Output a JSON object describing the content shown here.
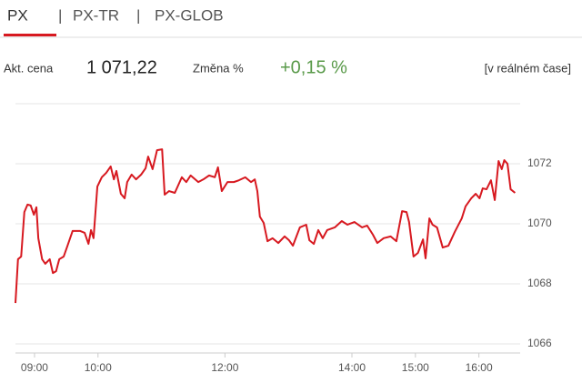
{
  "tabs": [
    "PX",
    "PX-TR",
    "PX-GLOB"
  ],
  "info": {
    "price_label": "Akt. cena",
    "price": "1 071,22",
    "change_label": "Změna %",
    "change": "+0,15 %",
    "realtime": "[v reálném čase]"
  },
  "chart_data": {
    "type": "line",
    "color": "#d71920",
    "grid": true,
    "xlim": [
      8.7,
      16.65
    ],
    "ylim": [
      1066,
      1074
    ],
    "yticks": [
      1066,
      1068,
      1070,
      1072
    ],
    "xticks": [
      {
        "value": 9,
        "label": "09:00"
      },
      {
        "value": 10,
        "label": "10:00"
      },
      {
        "value": 12,
        "label": "12:00"
      },
      {
        "value": 14,
        "label": "14:00"
      },
      {
        "value": 15,
        "label": "15:00"
      },
      {
        "value": 16,
        "label": "16:00"
      }
    ],
    "x": [
      8.7,
      8.74,
      8.79,
      8.84,
      8.89,
      8.94,
      8.99,
      9.03,
      9.06,
      9.12,
      9.17,
      9.24,
      9.29,
      9.34,
      9.39,
      9.46,
      9.52,
      9.6,
      9.72,
      9.79,
      9.85,
      9.89,
      9.93,
      9.99,
      10.06,
      10.13,
      10.2,
      10.25,
      10.29,
      10.36,
      10.42,
      10.46,
      10.53,
      10.6,
      10.68,
      10.75,
      10.79,
      10.86,
      10.93,
      11.01,
      11.05,
      11.12,
      11.21,
      11.32,
      11.39,
      11.46,
      11.58,
      11.66,
      11.75,
      11.84,
      11.89,
      11.95,
      12.04,
      12.14,
      12.22,
      12.32,
      12.41,
      12.47,
      12.51,
      12.55,
      12.61,
      12.67,
      12.75,
      12.84,
      12.94,
      13.01,
      13.07,
      13.18,
      13.28,
      13.33,
      13.4,
      13.47,
      13.54,
      13.61,
      13.73,
      13.84,
      13.93,
      14.04,
      14.16,
      14.24,
      14.33,
      14.4,
      14.5,
      14.61,
      14.7,
      14.79,
      14.86,
      14.9,
      14.97,
      15.04,
      15.12,
      15.16,
      15.22,
      15.27,
      15.34,
      15.43,
      15.52,
      15.62,
      15.73,
      15.79,
      15.88,
      15.95,
      16.01,
      16.06,
      16.12,
      16.19,
      16.25,
      16.31,
      16.36,
      16.4,
      16.45,
      16.5,
      16.57
    ],
    "values": [
      1067.36,
      1068.82,
      1068.91,
      1070.39,
      1070.64,
      1070.61,
      1070.3,
      1070.55,
      1069.52,
      1068.82,
      1068.67,
      1068.82,
      1068.36,
      1068.42,
      1068.82,
      1068.91,
      1069.27,
      1069.76,
      1069.76,
      1069.7,
      1069.33,
      1069.79,
      1069.52,
      1071.24,
      1071.55,
      1071.7,
      1071.91,
      1071.48,
      1071.76,
      1071.0,
      1070.85,
      1071.39,
      1071.64,
      1071.48,
      1071.64,
      1071.85,
      1072.24,
      1071.82,
      1072.45,
      1072.48,
      1070.97,
      1071.09,
      1071.03,
      1071.55,
      1071.39,
      1071.61,
      1071.39,
      1071.48,
      1071.61,
      1071.55,
      1071.88,
      1071.09,
      1071.39,
      1071.39,
      1071.45,
      1071.55,
      1071.39,
      1071.48,
      1071.09,
      1070.24,
      1070.03,
      1069.42,
      1069.52,
      1069.36,
      1069.58,
      1069.45,
      1069.27,
      1069.88,
      1069.97,
      1069.45,
      1069.33,
      1069.79,
      1069.52,
      1069.79,
      1069.88,
      1070.09,
      1069.97,
      1070.06,
      1069.88,
      1069.94,
      1069.64,
      1069.36,
      1069.52,
      1069.58,
      1069.42,
      1070.42,
      1070.39,
      1070.06,
      1068.91,
      1069.03,
      1069.48,
      1068.85,
      1070.18,
      1069.97,
      1069.88,
      1069.21,
      1069.27,
      1069.73,
      1070.18,
      1070.58,
      1070.85,
      1071.0,
      1070.85,
      1071.18,
      1071.15,
      1071.45,
      1070.79,
      1072.09,
      1071.82,
      1072.12,
      1072.0,
      1071.15,
      1071.03
    ]
  }
}
